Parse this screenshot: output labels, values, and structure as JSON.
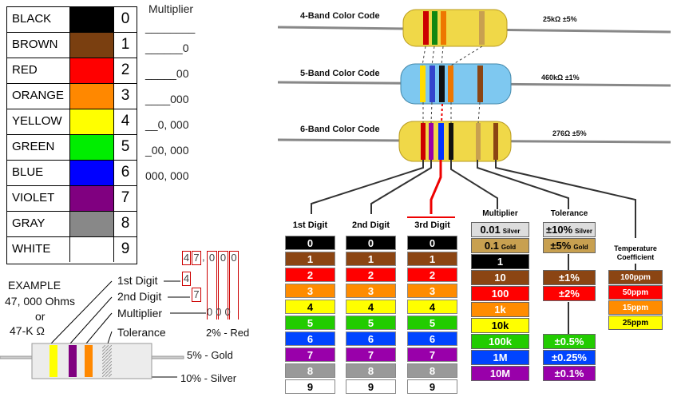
{
  "color_table": [
    {
      "name": "BLACK",
      "color": "#000000",
      "digit": "0",
      "multiplier": "________"
    },
    {
      "name": "BROWN",
      "color": "#7a3f10",
      "digit": "1",
      "multiplier": "______0"
    },
    {
      "name": "RED",
      "color": "#ff0000",
      "digit": "2",
      "multiplier": "_____00"
    },
    {
      "name": "ORANGE",
      "color": "#ff8800",
      "digit": "3",
      "multiplier": "____000"
    },
    {
      "name": "YELLOW",
      "color": "#ffff00",
      "digit": "4",
      "multiplier": "__0, 000"
    },
    {
      "name": "GREEN",
      "color": "#00ee00",
      "digit": "5",
      "multiplier": "_00, 000"
    },
    {
      "name": "BLUE",
      "color": "#0000ff",
      "digit": "6",
      "multiplier": "000, 000"
    },
    {
      "name": "VIOLET",
      "color": "#800080",
      "digit": "7",
      "multiplier": ""
    },
    {
      "name": "GRAY",
      "color": "#888888",
      "digit": "8",
      "multiplier": ""
    },
    {
      "name": "WHITE",
      "color": "#ffffff",
      "digit": "9",
      "multiplier": ""
    }
  ],
  "multiplier_title": "Multiplier",
  "example": {
    "title": "EXAMPLE",
    "line2": "47, 000 Ohms",
    "line3": "or",
    "line4": "47-K Ω",
    "first_digit": "1st Digit",
    "second_digit": "2nd Digit",
    "multiplier": "Multiplier",
    "tolerance": "Tolerance",
    "tol_red": "2% - Red",
    "tol_gold": "5% - Gold",
    "tol_silver": "10% - Silver",
    "digits_top": [
      "4",
      "7",
      ",",
      "0",
      "0",
      "0"
    ],
    "digit_first": "4",
    "digit_second": "7",
    "digits_mult": [
      "0",
      "0",
      "0"
    ]
  },
  "resistors": [
    {
      "title": "4-Band Color Code",
      "value": "25kΩ  ±5%"
    },
    {
      "title": "5-Band Color Code",
      "value": "460kΩ  ±1%"
    },
    {
      "title": "6-Band Color Code",
      "value": "276Ω  ±5%"
    }
  ],
  "digit_columns": {
    "headers": [
      "1st Digit",
      "2nd Digit",
      "3rd Digit"
    ],
    "cells": [
      {
        "label": "0",
        "bg": "#000000",
        "fg": "#ffffff"
      },
      {
        "label": "1",
        "bg": "#8b4513",
        "fg": "#ffffff"
      },
      {
        "label": "2",
        "bg": "#ff0000",
        "fg": "#ffffff"
      },
      {
        "label": "3",
        "bg": "#ff8c00",
        "fg": "#ffffff"
      },
      {
        "label": "4",
        "bg": "#ffff00",
        "fg": "#000000"
      },
      {
        "label": "5",
        "bg": "#22cc00",
        "fg": "#ffffff"
      },
      {
        "label": "6",
        "bg": "#0044ff",
        "fg": "#ffffff"
      },
      {
        "label": "7",
        "bg": "#9900aa",
        "fg": "#ffffff"
      },
      {
        "label": "8",
        "bg": "#999999",
        "fg": "#ffffff"
      },
      {
        "label": "9",
        "bg": "#ffffff",
        "fg": "#000000"
      }
    ]
  },
  "multiplier_column": {
    "header": "Multiplier",
    "cells": [
      {
        "label": "0.01",
        "sub": "Silver",
        "bg": "#dddddd",
        "fg": "#000000"
      },
      {
        "label": "0.1",
        "sub": "Gold",
        "bg": "#c8a050",
        "fg": "#000000"
      },
      {
        "label": "1",
        "sub": "",
        "bg": "#000000",
        "fg": "#ffffff"
      },
      {
        "label": "10",
        "sub": "",
        "bg": "#8b4513",
        "fg": "#ffffff"
      },
      {
        "label": "100",
        "sub": "",
        "bg": "#ff0000",
        "fg": "#ffffff"
      },
      {
        "label": "1k",
        "sub": "",
        "bg": "#ff8c00",
        "fg": "#ffffff"
      },
      {
        "label": "10k",
        "sub": "",
        "bg": "#ffff00",
        "fg": "#000000"
      },
      {
        "label": "100k",
        "sub": "",
        "bg": "#22cc00",
        "fg": "#ffffff"
      },
      {
        "label": "1M",
        "sub": "",
        "bg": "#0044ff",
        "fg": "#ffffff"
      },
      {
        "label": "10M",
        "sub": "",
        "bg": "#9900aa",
        "fg": "#ffffff"
      }
    ]
  },
  "tolerance_column": {
    "header": "Tolerance",
    "top": [
      {
        "label": "±10%",
        "sub": "Silver",
        "bg": "#dddddd",
        "fg": "#000000"
      },
      {
        "label": "±5%",
        "sub": "Gold",
        "bg": "#c8a050",
        "fg": "#000000"
      }
    ],
    "mid": [
      {
        "label": "±1%",
        "bg": "#8b4513",
        "fg": "#ffffff"
      },
      {
        "label": "±2%",
        "bg": "#ff0000",
        "fg": "#ffffff"
      }
    ],
    "low": [
      {
        "label": "±0.5%",
        "bg": "#22cc00",
        "fg": "#ffffff"
      },
      {
        "label": "±0.25%",
        "bg": "#0044ff",
        "fg": "#ffffff"
      },
      {
        "label": "±0.1%",
        "bg": "#9900aa",
        "fg": "#ffffff"
      }
    ]
  },
  "tempco_column": {
    "header_line1": "Temperature",
    "header_line2": "Coefficient",
    "cells": [
      {
        "label": "100ppm",
        "bg": "#8b4513",
        "fg": "#ffffff"
      },
      {
        "label": "50ppm",
        "bg": "#ff0000",
        "fg": "#ffffff"
      },
      {
        "label": "15ppm",
        "bg": "#ff8c00",
        "fg": "#ffffff"
      },
      {
        "label": "25ppm",
        "bg": "#ffff00",
        "fg": "#000000"
      }
    ]
  }
}
